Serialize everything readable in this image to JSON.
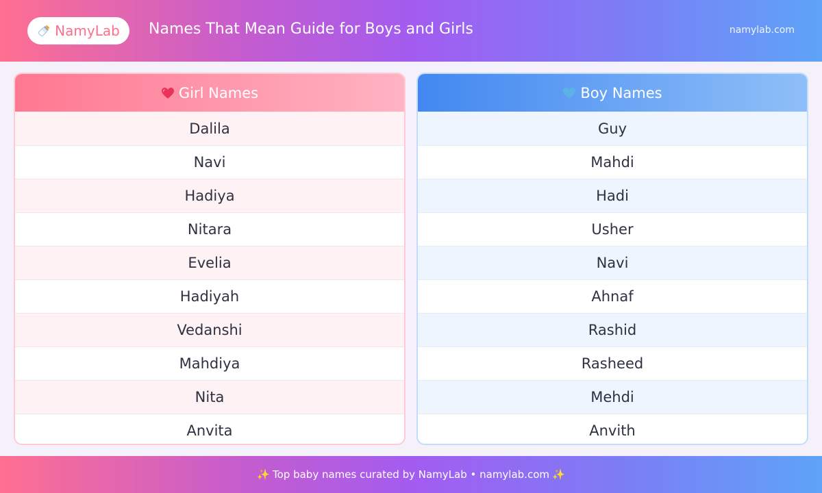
{
  "header": {
    "logo_label": "NamyLab",
    "logo_icon": "baby-bottle-icon",
    "title": "Names That Mean Guide for Boys and Girls",
    "site": "namylab.com"
  },
  "girls": {
    "heading": "Girl Names",
    "icon": "pink-heart-icon",
    "names": [
      "Dalila",
      "Navi",
      "Hadiya",
      "Nitara",
      "Evelia",
      "Hadiyah",
      "Vedanshi",
      "Mahdiya",
      "Nita",
      "Anvita"
    ]
  },
  "boys": {
    "heading": "Boy Names",
    "icon": "blue-heart-icon",
    "names": [
      "Guy",
      "Mahdi",
      "Hadi",
      "Usher",
      "Navi",
      "Ahnaf",
      "Rashid",
      "Rasheed",
      "Mehdi",
      "Anvith"
    ]
  },
  "footer": {
    "text": "Top baby names curated by NamyLab • namylab.com",
    "icon": "sparkles-icon"
  },
  "colors": {
    "brand_pink": "#ff6f8d",
    "brand_blue": "#4288f0",
    "text": "#2d3142"
  }
}
